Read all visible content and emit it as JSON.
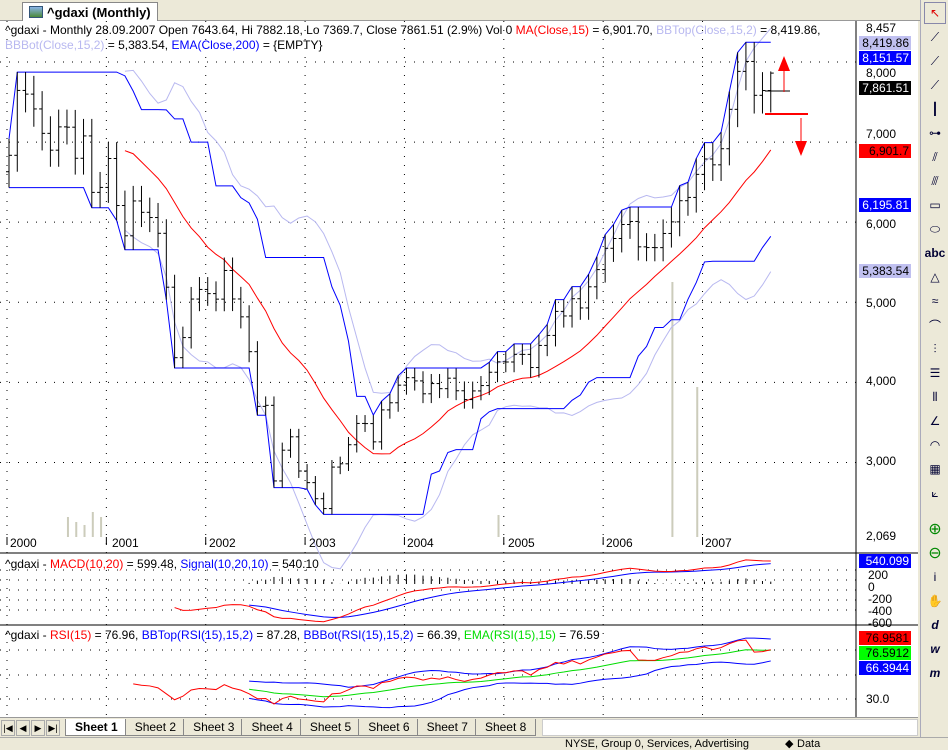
{
  "window": {
    "tab_title": "^gdaxi (Monthly)"
  },
  "main_pane": {
    "legend_line1": [
      {
        "text": "^gdaxi - Monthly 28.09.2007 Open 7643.64, Hi 7882.18, Lo 7369.7, Close 7861.51 (2.9%) Vol 0 ",
        "color": "#000000"
      },
      {
        "text": "MA(Close,15)",
        "color": "#ff0000"
      },
      {
        "text": " = 6,901.70, ",
        "color": "#000000"
      },
      {
        "text": "BBTop(Close,15,2)",
        "color": "#b8b8f0"
      },
      {
        "text": " = 8,419.86,",
        "color": "#000000"
      }
    ],
    "legend_line2": [
      {
        "text": "BBBot(Close,15,2)",
        "color": "#b8b8f0"
      },
      {
        "text": " = 5,383.54, ",
        "color": "#000000"
      },
      {
        "text": "EMA(Close,200)",
        "color": "#0000ff"
      },
      {
        "text": " = {EMPTY}",
        "color": "#000000"
      }
    ],
    "axis_labels": [
      "8,457",
      "8,000",
      "7,000",
      "6,000",
      "5,000",
      "4,000",
      "3,000",
      "2,069"
    ],
    "value_tags": [
      {
        "text": "8,419.86",
        "bg": "#c0c0f0",
        "fg": "#000000"
      },
      {
        "text": "8,151.57",
        "bg": "#0000ff",
        "fg": "#ffffff"
      },
      {
        "text": "7,861.51",
        "bg": "#000000",
        "fg": "#ffffff"
      },
      {
        "text": "6,901.7",
        "bg": "#ff0000",
        "fg": "#000000"
      },
      {
        "text": "6,195.81",
        "bg": "#0000ff",
        "fg": "#ffffff"
      },
      {
        "text": "5,383.54",
        "bg": "#c0c0f0",
        "fg": "#000000"
      }
    ],
    "year_labels": [
      "2000",
      "2001",
      "2002",
      "2003",
      "2004",
      "2005",
      "2006",
      "2007"
    ]
  },
  "macd_pane": {
    "legend": [
      {
        "text": "^gdaxi - ",
        "color": "#000000"
      },
      {
        "text": "MACD(10,20)",
        "color": "#ff0000"
      },
      {
        "text": " = 599.48, ",
        "color": "#000000"
      },
      {
        "text": "Signal(10,20,10)",
        "color": "#0000ff"
      },
      {
        "text": " = 540.10",
        "color": "#000000"
      }
    ],
    "axis_labels": [
      "200",
      "0",
      "-200",
      "-400",
      "-600"
    ],
    "value_tag": {
      "text": "540.099",
      "bg": "#0000ff",
      "fg": "#ffffff"
    }
  },
  "rsi_pane": {
    "legend": [
      {
        "text": "^gdaxi - ",
        "color": "#000000"
      },
      {
        "text": "RSI(15)",
        "color": "#ff0000"
      },
      {
        "text": " = 76.96, ",
        "color": "#000000"
      },
      {
        "text": "BBTop(RSI(15),15,2)",
        "color": "#0000ff"
      },
      {
        "text": " = 87.28, ",
        "color": "#000000"
      },
      {
        "text": "BBBot(RSI(15),15,2)",
        "color": "#0000ff"
      },
      {
        "text": " = 66.39, ",
        "color": "#000000"
      },
      {
        "text": "EMA(RSI(15),15)",
        "color": "#00dd00"
      },
      {
        "text": " = 76.59",
        "color": "#000000"
      }
    ],
    "axis_labels": [
      "30.0"
    ],
    "value_tags": [
      {
        "text": "76.9581",
        "bg": "#ff0000",
        "fg": "#000000"
      },
      {
        "text": "76.5912",
        "bg": "#00ff00",
        "fg": "#000000"
      },
      {
        "text": "66.3944",
        "bg": "#0000ff",
        "fg": "#ffffff"
      }
    ]
  },
  "sheets": {
    "tabs": [
      "Sheet 1",
      "Sheet 2",
      "Sheet 3",
      "Sheet 4",
      "Sheet 5",
      "Sheet 6",
      "Sheet 7",
      "Sheet 8"
    ],
    "active": "Sheet 1"
  },
  "status": {
    "text": "NYSE, Group 0, Services, Advertising",
    "data_label": "Data"
  },
  "toolbar": {
    "icons": [
      "select-arrow",
      "line",
      "ray",
      "extended-line",
      "vertical-line",
      "horizontal-line",
      "parallel-lines",
      "channel",
      "rectangle",
      "ellipse",
      "text-abc",
      "triangle",
      "fibonacci",
      "arc",
      "cycle",
      "horizontal-lines",
      "vertical-lines",
      "fan",
      "arcs",
      "grid",
      "gann-fan",
      "zoom-in",
      "zoom-out",
      "info",
      "hand",
      "daily-d",
      "weekly-w",
      "monthly-m"
    ]
  },
  "chart_data": {
    "type": "ohlc-bar",
    "interval": "monthly",
    "start": "2000-01",
    "closes": [
      6835,
      7645,
      7599,
      7414,
      7109,
      6899,
      7190,
      7186,
      6798,
      7077,
      6372,
      6434,
      6795,
      6208,
      5830,
      6265,
      6123,
      6058,
      5861,
      5188,
      4308,
      4559,
      5040,
      5160,
      5108,
      5039,
      5397,
      5041,
      4818,
      4383,
      3700,
      3713,
      2769,
      3153,
      3320,
      2893,
      2748,
      2547,
      2424,
      2942,
      2983,
      3221,
      3487,
      3485,
      3257,
      3656,
      3745,
      3965,
      4058,
      4018,
      3857,
      3985,
      3921,
      4052,
      3895,
      3785,
      3893,
      3960,
      4126,
      4256,
      4254,
      4350,
      4349,
      4185,
      4461,
      4586,
      4886,
      4829,
      5044,
      4929,
      5193,
      5408,
      5674,
      5796,
      5971,
      6009,
      5692,
      5683,
      5682,
      5859,
      6004,
      6268,
      6309,
      6597,
      6789,
      6716,
      6917,
      7409,
      7883,
      8007,
      7584,
      7643.64,
      7861.51
    ],
    "last_bar": {
      "date": "28.09.2007",
      "open": 7643.64,
      "high": 7882.18,
      "low": 7369.7,
      "close": 7861.51
    },
    "ylim": [
      2069,
      8457
    ],
    "colors": {
      "ma": "#ff0000",
      "bb": "#b8b8f0",
      "channel": "#0000ff",
      "macd": "#ff0000",
      "signal": "#0000ff",
      "rsi": "#ff0000",
      "rsi_ema": "#00dd00",
      "rsi_bb": "#0000ff"
    }
  }
}
